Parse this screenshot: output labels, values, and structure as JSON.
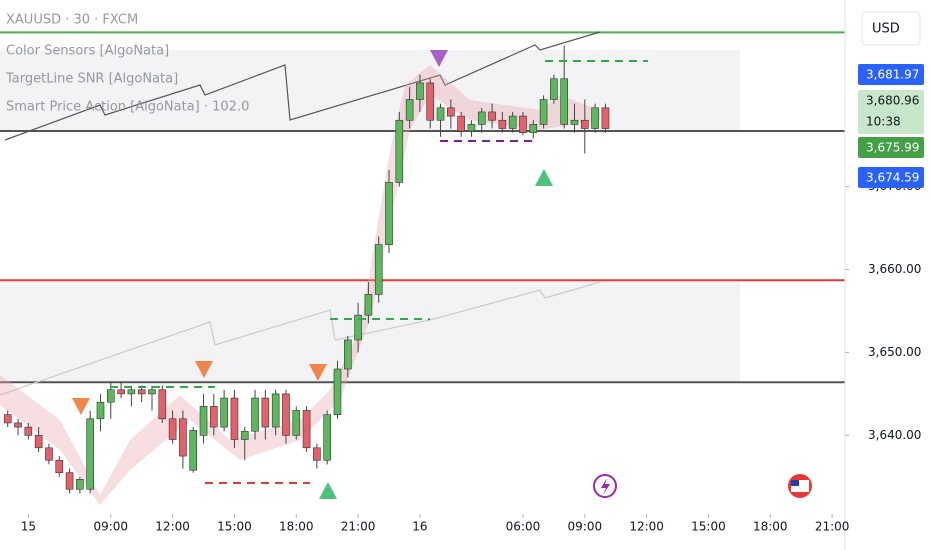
{
  "chart_data": {
    "type": "candlestick",
    "legend": [
      "XAUUSD · 30 · FXCM",
      "Color Sensors [AlgoNata]",
      "TargetLine SNR [AlgoNata]",
      "Smart Price Action [AlgoNata] · 102.0"
    ],
    "currency": "USD",
    "up_color": "#5cb85c",
    "down_color": "#e5606a",
    "candles": [
      {
        "o": 3642.5,
        "h": 3643,
        "l": 3641,
        "c": 3641.5
      },
      {
        "o": 3641.5,
        "h": 3642,
        "l": 3640,
        "c": 3641
      },
      {
        "o": 3641,
        "h": 3641.5,
        "l": 3639.5,
        "c": 3640
      },
      {
        "o": 3640,
        "h": 3641,
        "l": 3638,
        "c": 3638.5
      },
      {
        "o": 3638.5,
        "h": 3639,
        "l": 3636.5,
        "c": 3637
      },
      {
        "o": 3637,
        "h": 3637.5,
        "l": 3635,
        "c": 3635.5
      },
      {
        "o": 3635.5,
        "h": 3636,
        "l": 3633,
        "c": 3633.5
      },
      {
        "o": 3633.5,
        "h": 3635,
        "l": 3633,
        "c": 3634.7
      },
      {
        "o": 3633.5,
        "h": 3643,
        "l": 3633,
        "c": 3642
      },
      {
        "o": 3642,
        "h": 3645,
        "l": 3640.5,
        "c": 3644
      },
      {
        "o": 3644,
        "h": 3646.5,
        "l": 3642,
        "c": 3645.5
      },
      {
        "o": 3645.5,
        "h": 3646.5,
        "l": 3644.5,
        "c": 3645
      },
      {
        "o": 3645,
        "h": 3646,
        "l": 3643.5,
        "c": 3645.5
      },
      {
        "o": 3645.5,
        "h": 3646,
        "l": 3644,
        "c": 3645
      },
      {
        "o": 3645,
        "h": 3646,
        "l": 3643,
        "c": 3645.5
      },
      {
        "o": 3645.5,
        "h": 3646,
        "l": 3641.5,
        "c": 3642
      },
      {
        "o": 3642,
        "h": 3643,
        "l": 3639,
        "c": 3639.5
      },
      {
        "o": 3642,
        "h": 3643,
        "l": 3636,
        "c": 3637.5
      },
      {
        "o": 3635.8,
        "h": 3641,
        "l": 3635.5,
        "c": 3640.6
      },
      {
        "o": 3640,
        "h": 3645,
        "l": 3639,
        "c": 3643.5
      },
      {
        "o": 3643.5,
        "h": 3645,
        "l": 3640,
        "c": 3641
      },
      {
        "o": 3641,
        "h": 3645.5,
        "l": 3640.5,
        "c": 3644.5
      },
      {
        "o": 3644.5,
        "h": 3645.5,
        "l": 3638.5,
        "c": 3639.5
      },
      {
        "o": 3639.5,
        "h": 3641,
        "l": 3637,
        "c": 3640.5
      },
      {
        "o": 3640.5,
        "h": 3645.5,
        "l": 3639.5,
        "c": 3644.5
      },
      {
        "o": 3644.5,
        "h": 3645.5,
        "l": 3639.5,
        "c": 3641
      },
      {
        "o": 3641,
        "h": 3645.5,
        "l": 3640,
        "c": 3645
      },
      {
        "o": 3645,
        "h": 3645.5,
        "l": 3639,
        "c": 3640
      },
      {
        "o": 3640,
        "h": 3643.5,
        "l": 3639.5,
        "c": 3643
      },
      {
        "o": 3643,
        "h": 3643.5,
        "l": 3638,
        "c": 3638.5
      },
      {
        "o": 3638.5,
        "h": 3639,
        "l": 3636,
        "c": 3637
      },
      {
        "o": 3637,
        "h": 3643,
        "l": 3636.5,
        "c": 3642.5
      },
      {
        "o": 3642.5,
        "h": 3649,
        "l": 3642,
        "c": 3648
      },
      {
        "o": 3648,
        "h": 3652,
        "l": 3647,
        "c": 3651.5
      },
      {
        "o": 3651.5,
        "h": 3656,
        "l": 3650,
        "c": 3654.5
      },
      {
        "o": 3654.5,
        "h": 3658.5,
        "l": 3653.5,
        "c": 3657
      },
      {
        "o": 3657,
        "h": 3664,
        "l": 3656,
        "c": 3663
      },
      {
        "o": 3663,
        "h": 3672,
        "l": 3662,
        "c": 3670.5
      },
      {
        "o": 3670.5,
        "h": 3679,
        "l": 3670,
        "c": 3678
      },
      {
        "o": 3678,
        "h": 3682,
        "l": 3677,
        "c": 3680.5
      },
      {
        "o": 3680.5,
        "h": 3683.5,
        "l": 3679,
        "c": 3682.5
      },
      {
        "o": 3682.5,
        "h": 3683,
        "l": 3677,
        "c": 3678
      },
      {
        "o": 3678,
        "h": 3680,
        "l": 3676,
        "c": 3679.5
      },
      {
        "o": 3679.5,
        "h": 3680.5,
        "l": 3677,
        "c": 3678.5
      },
      {
        "o": 3678.5,
        "h": 3679,
        "l": 3676,
        "c": 3676.7
      },
      {
        "o": 3676.7,
        "h": 3678,
        "l": 3676,
        "c": 3677.5
      },
      {
        "o": 3677.5,
        "h": 3679.5,
        "l": 3676.5,
        "c": 3679
      },
      {
        "o": 3679,
        "h": 3680,
        "l": 3677,
        "c": 3678
      },
      {
        "o": 3678,
        "h": 3679,
        "l": 3676.5,
        "c": 3677
      },
      {
        "o": 3677,
        "h": 3679,
        "l": 3676.5,
        "c": 3678.5
      },
      {
        "o": 3678.5,
        "h": 3679,
        "l": 3676.2,
        "c": 3676.5
      },
      {
        "o": 3676.5,
        "h": 3678,
        "l": 3675.8,
        "c": 3677.5
      },
      {
        "o": 3677.5,
        "h": 3681,
        "l": 3677,
        "c": 3680.5
      },
      {
        "o": 3680.5,
        "h": 3683.5,
        "l": 3680,
        "c": 3683
      },
      {
        "o": 3677.5,
        "h": 3687,
        "l": 3677,
        "c": 3683
      },
      {
        "o": 3677.5,
        "h": 3680,
        "l": 3676.5,
        "c": 3678
      },
      {
        "o": 3678,
        "h": 3680.5,
        "l": 3674,
        "c": 3677
      },
      {
        "o": 3677,
        "h": 3680,
        "l": 3676.5,
        "c": 3679.5
      },
      {
        "o": 3679.5,
        "h": 3680,
        "l": 3676.5,
        "c": 3677
      }
    ],
    "xlim": [
      -0.75,
      81.25
    ],
    "xticks": [
      {
        "value": 2,
        "label": "15"
      },
      {
        "value": 10,
        "label": "09:00"
      },
      {
        "value": 16,
        "label": "12:00"
      },
      {
        "value": 22,
        "label": "15:00"
      },
      {
        "value": 28,
        "label": "18:00"
      },
      {
        "value": 34,
        "label": "21:00"
      },
      {
        "value": 40,
        "label": "16"
      },
      {
        "value": 50,
        "label": "06:00"
      },
      {
        "value": 56,
        "label": "09:00"
      },
      {
        "value": 62,
        "label": "12:00"
      },
      {
        "value": 68,
        "label": "15:00"
      },
      {
        "value": 74,
        "label": "18:00"
      },
      {
        "value": 80,
        "label": "21:00"
      }
    ],
    "ylim": [
      3631,
      3692.5
    ],
    "yticks": [
      {
        "value": 3640,
        "label": "3,640.00"
      },
      {
        "value": 3650,
        "label": "3,650.00"
      },
      {
        "value": 3660,
        "label": "3,660.00"
      },
      {
        "value": 3670,
        "label": "3,670.00"
      }
    ],
    "levels": [
      {
        "value": 3688.6,
        "color": "#4caf50"
      },
      {
        "value": 3676.7,
        "color": "#555"
      },
      {
        "value": 3658.7,
        "color": "#e53935"
      },
      {
        "value": 3646.4,
        "color": "#555"
      }
    ],
    "price_badges": [
      {
        "text": "3,681.97",
        "color": "#2962ff"
      },
      {
        "text": "3,680.96",
        "sub": "10:38",
        "color": "#c8e6c9"
      },
      {
        "text": "3,675.99",
        "color": "#43a047"
      },
      {
        "text": "3,674.59",
        "color": "#2962ff"
      }
    ]
  }
}
